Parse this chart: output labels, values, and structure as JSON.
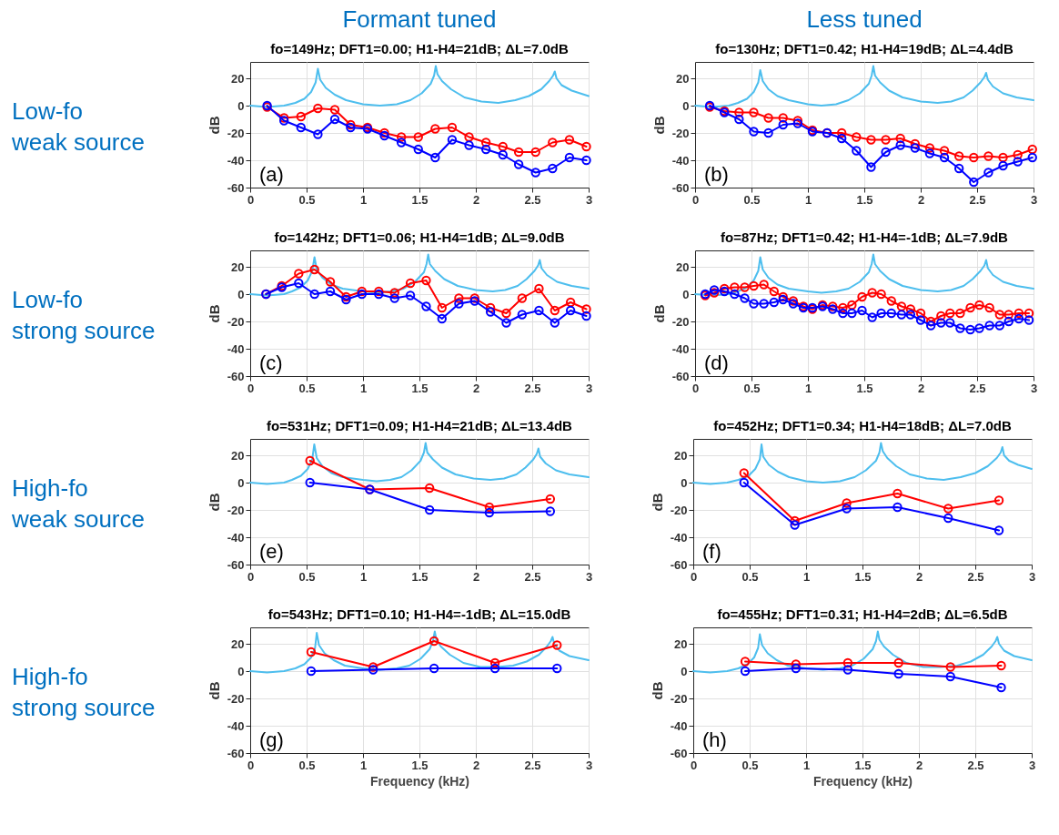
{
  "chart_data": [
    {
      "type": "line",
      "title": "fo=149Hz; DFT1=0.00; H1-H4=21dB; ΔL=7.0dB",
      "ylabel": "dB",
      "annotations": [
        "(a)",
        "Formant tuned",
        "Low-fo\nweak source"
      ],
      "xlim": [
        0,
        3
      ],
      "xticks": [
        0,
        0.5,
        1,
        1.5,
        2,
        2.5,
        3
      ],
      "ylim": [
        -60,
        32
      ],
      "yticks": [
        -60,
        -40,
        -20,
        0,
        20
      ],
      "grid": true,
      "marker": "circle",
      "x": [
        0.15,
        0.3,
        0.45,
        0.6,
        0.75,
        0.89,
        1.04,
        1.19,
        1.34,
        1.49,
        1.64,
        1.79,
        1.94,
        2.09,
        2.24,
        2.38,
        2.53,
        2.68,
        2.83,
        2.98
      ],
      "series": [
        {
          "color": "#4dbeee",
          "marker": "none",
          "x": [
            0,
            0.15,
            0.3,
            0.4,
            0.48,
            0.54,
            0.58,
            0.6,
            0.62,
            0.67,
            0.75,
            0.85,
            1.0,
            1.15,
            1.3,
            1.42,
            1.52,
            1.6,
            1.63,
            1.645,
            1.66,
            1.7,
            1.78,
            1.9,
            2.05,
            2.2,
            2.35,
            2.47,
            2.58,
            2.65,
            2.685,
            2.7,
            2.715,
            2.76,
            2.85,
            3
          ],
          "values": [
            0,
            -1,
            0,
            2,
            5,
            10,
            17,
            27,
            19,
            13,
            8,
            4,
            1,
            0,
            1,
            4,
            9,
            16,
            22,
            29,
            23,
            18,
            12,
            6,
            3,
            2,
            4,
            7,
            12,
            18,
            22,
            25,
            20,
            15,
            11,
            7
          ]
        },
        {
          "color": "#ff0000",
          "values": [
            -1,
            -9,
            -8,
            -2,
            -3,
            -14,
            -16,
            -20,
            -23,
            -23,
            -17,
            -16,
            -23,
            -27,
            -30,
            -34,
            -34,
            -27,
            -25,
            -30
          ]
        },
        {
          "color": "#0000ff",
          "values": [
            0,
            -11,
            -16,
            -21,
            -10,
            -16,
            -17,
            -22,
            -27,
            -32,
            -38,
            -25,
            -29,
            -32,
            -36,
            -43,
            -49,
            -46,
            -38,
            -40
          ]
        }
      ]
    },
    {
      "type": "line",
      "title": "fo=130Hz; DFT1=0.42; H1-H4=19dB; ΔL=4.4dB",
      "ylabel": "dB",
      "annotations": [
        "(b)",
        "Less tuned"
      ],
      "xlim": [
        0,
        3
      ],
      "xticks": [
        0,
        0.5,
        1,
        1.5,
        2,
        2.5,
        3
      ],
      "ylim": [
        -60,
        32
      ],
      "yticks": [
        -60,
        -40,
        -20,
        0,
        20
      ],
      "grid": true,
      "marker": "circle",
      "x": [
        0.13,
        0.26,
        0.39,
        0.52,
        0.65,
        0.78,
        0.91,
        1.04,
        1.17,
        1.3,
        1.43,
        1.56,
        1.69,
        1.82,
        1.95,
        2.08,
        2.21,
        2.34,
        2.47,
        2.6,
        2.73,
        2.86,
        2.99
      ],
      "series": [
        {
          "color": "#4dbeee",
          "marker": "none",
          "x": [
            0,
            0.15,
            0.3,
            0.38,
            0.46,
            0.52,
            0.56,
            0.578,
            0.6,
            0.65,
            0.73,
            0.83,
            1.0,
            1.12,
            1.25,
            1.36,
            1.46,
            1.54,
            1.565,
            1.58,
            1.595,
            1.64,
            1.72,
            1.84,
            2.0,
            2.15,
            2.27,
            2.38,
            2.46,
            2.53,
            2.565,
            2.58,
            2.595,
            2.64,
            2.73,
            2.85,
            3
          ],
          "values": [
            0,
            -1,
            0,
            2,
            5,
            10,
            17,
            26,
            18,
            12,
            7,
            4,
            1,
            0,
            1,
            4,
            9,
            16,
            22,
            29,
            22,
            17,
            11,
            6,
            3,
            2,
            3,
            6,
            11,
            17,
            21,
            24,
            19,
            14,
            9,
            6,
            4
          ]
        },
        {
          "color": "#ff0000",
          "values": [
            -1,
            -4,
            -5,
            -5,
            -9,
            -9,
            -11,
            -18,
            -20,
            -20,
            -23,
            -25,
            -25,
            -24,
            -28,
            -31,
            -33,
            -37,
            -38,
            -37,
            -38,
            -36,
            -32
          ]
        },
        {
          "color": "#0000ff",
          "values": [
            0,
            -5,
            -10,
            -19,
            -20,
            -14,
            -13,
            -19,
            -20,
            -24,
            -33,
            -45,
            -34,
            -29,
            -31,
            -35,
            -38,
            -46,
            -56,
            -49,
            -44,
            -41,
            -38
          ]
        }
      ]
    },
    {
      "type": "line",
      "title": "fo=142Hz; DFT1=0.06; H1-H4=1dB; ΔL=9.0dB",
      "ylabel": "dB",
      "annotations": [
        "(c)",
        "Low-fo\nstrong source"
      ],
      "xlim": [
        0,
        3
      ],
      "xticks": [
        0,
        0.5,
        1,
        1.5,
        2,
        2.5,
        3
      ],
      "ylim": [
        -60,
        32
      ],
      "yticks": [
        -60,
        -40,
        -20,
        0,
        20
      ],
      "grid": true,
      "marker": "circle",
      "x": [
        0.14,
        0.28,
        0.43,
        0.57,
        0.71,
        0.85,
        0.99,
        1.14,
        1.28,
        1.42,
        1.56,
        1.7,
        1.85,
        1.99,
        2.13,
        2.27,
        2.41,
        2.56,
        2.7,
        2.84,
        2.98
      ],
      "series": [
        {
          "color": "#4dbeee",
          "marker": "none",
          "x": [
            0,
            0.15,
            0.3,
            0.37,
            0.45,
            0.51,
            0.55,
            0.57,
            0.59,
            0.64,
            0.72,
            0.82,
            1.0,
            1.12,
            1.25,
            1.36,
            1.46,
            1.54,
            1.563,
            1.578,
            1.593,
            1.64,
            1.72,
            1.84,
            2.0,
            2.15,
            2.26,
            2.37,
            2.45,
            2.52,
            2.552,
            2.567,
            2.582,
            2.63,
            2.72,
            2.85,
            3
          ],
          "values": [
            0,
            -1,
            0,
            2,
            5,
            10,
            17,
            27,
            18,
            12,
            7,
            4,
            2,
            1,
            2,
            4,
            9,
            16,
            22,
            29,
            22,
            17,
            11,
            6,
            3,
            2,
            3,
            6,
            11,
            17,
            21,
            25,
            19,
            14,
            9,
            6,
            4
          ]
        },
        {
          "color": "#ff0000",
          "values": [
            0,
            6,
            15,
            18,
            9,
            -2,
            2,
            2,
            1,
            8,
            10,
            -10,
            -3,
            -3,
            -10,
            -14,
            -3,
            4,
            -12,
            -6,
            -11
          ]
        },
        {
          "color": "#0000ff",
          "values": [
            0,
            5,
            8,
            0,
            2,
            -4,
            0,
            0,
            -3,
            -1,
            -9,
            -18,
            -7,
            -5,
            -13,
            -21,
            -15,
            -12,
            -21,
            -12,
            -16
          ]
        }
      ]
    },
    {
      "type": "line",
      "title": "fo=87Hz; DFT1=0.42; H1-H4=-1dB; ΔL=7.9dB",
      "ylabel": "dB",
      "annotations": [
        "(d)"
      ],
      "xlim": [
        0,
        3
      ],
      "xticks": [
        0,
        0.5,
        1,
        1.5,
        2,
        2.5,
        3
      ],
      "ylim": [
        -60,
        32
      ],
      "yticks": [
        -60,
        -40,
        -20,
        0,
        20
      ],
      "grid": true,
      "marker": "circle",
      "x": [
        0.09,
        0.17,
        0.26,
        0.35,
        0.44,
        0.52,
        0.61,
        0.7,
        0.78,
        0.87,
        0.96,
        1.04,
        1.13,
        1.22,
        1.31,
        1.39,
        1.48,
        1.57,
        1.65,
        1.74,
        1.83,
        1.91,
        2,
        2.09,
        2.18,
        2.26,
        2.35,
        2.44,
        2.52,
        2.61,
        2.7,
        2.78,
        2.87,
        2.96
      ],
      "series": [
        {
          "color": "#4dbeee",
          "marker": "none",
          "x": [
            0,
            0.15,
            0.3,
            0.38,
            0.46,
            0.52,
            0.56,
            0.578,
            0.6,
            0.65,
            0.73,
            0.83,
            1.0,
            1.12,
            1.25,
            1.36,
            1.46,
            1.54,
            1.565,
            1.58,
            1.595,
            1.64,
            1.72,
            1.84,
            2.0,
            2.15,
            2.27,
            2.38,
            2.46,
            2.53,
            2.565,
            2.58,
            2.595,
            2.64,
            2.73,
            2.85,
            3
          ],
          "values": [
            0,
            -1,
            0,
            2,
            5,
            10,
            17,
            27,
            18,
            12,
            7,
            4,
            2,
            1,
            2,
            4,
            9,
            16,
            22,
            29,
            22,
            17,
            11,
            6,
            3,
            2,
            3,
            6,
            11,
            17,
            21,
            25,
            19,
            14,
            9,
            6,
            4
          ]
        },
        {
          "color": "#ff0000",
          "values": [
            -1,
            1,
            4,
            5,
            5,
            6,
            7,
            2,
            -2,
            -5,
            -9,
            -11,
            -8,
            -9,
            -10,
            -8,
            -2,
            1,
            0,
            -5,
            -9,
            -11,
            -14,
            -20,
            -16,
            -14,
            -14,
            -10,
            -8,
            -10,
            -15,
            -15,
            -14,
            -14
          ]
        },
        {
          "color": "#0000ff",
          "values": [
            0,
            3,
            2,
            0,
            -3,
            -7,
            -7,
            -6,
            -4,
            -7,
            -10,
            -10,
            -9,
            -11,
            -14,
            -14,
            -12,
            -17,
            -14,
            -14,
            -15,
            -15,
            -19,
            -23,
            -21,
            -21,
            -25,
            -26,
            -25,
            -23,
            -23,
            -20,
            -18,
            -19
          ]
        }
      ]
    },
    {
      "type": "line",
      "title": "fo=531Hz; DFT1=0.09; H1-H4=21dB; ΔL=13.4dB",
      "ylabel": "dB",
      "annotations": [
        "(e)",
        "High-fo\nweak source"
      ],
      "xlim": [
        0,
        3
      ],
      "xticks": [
        0,
        0.5,
        1,
        1.5,
        2,
        2.5,
        3
      ],
      "ylim": [
        -60,
        32
      ],
      "yticks": [
        -60,
        -40,
        -20,
        0,
        20
      ],
      "grid": true,
      "marker": "circle",
      "x": [
        0.53,
        1.06,
        1.59,
        2.12,
        2.66
      ],
      "series": [
        {
          "color": "#4dbeee",
          "marker": "none",
          "x": [
            0,
            0.15,
            0.3,
            0.37,
            0.45,
            0.51,
            0.55,
            0.568,
            0.59,
            0.64,
            0.72,
            0.82,
            1.0,
            1.12,
            1.24,
            1.34,
            1.43,
            1.51,
            1.54,
            1.555,
            1.57,
            1.62,
            1.7,
            1.82,
            1.98,
            2.13,
            2.25,
            2.36,
            2.44,
            2.51,
            2.54,
            2.555,
            2.57,
            2.62,
            2.71,
            2.83,
            3
          ],
          "values": [
            0,
            -1,
            0,
            2,
            5,
            10,
            17,
            28,
            18,
            12,
            7,
            4,
            2,
            1,
            2,
            4,
            9,
            16,
            22,
            29,
            22,
            17,
            11,
            6,
            3,
            2,
            3,
            6,
            11,
            17,
            21,
            25,
            19,
            14,
            9,
            6,
            4
          ]
        },
        {
          "color": "#ff0000",
          "values": [
            16,
            -5,
            -4,
            -18,
            -12
          ]
        },
        {
          "color": "#0000ff",
          "values": [
            0,
            -5,
            -20,
            -22,
            -21
          ]
        }
      ]
    },
    {
      "type": "line",
      "title": "fo=452Hz; DFT1=0.34; H1-H4=18dB; ΔL=7.0dB",
      "ylabel": "dB",
      "annotations": [
        "(f)"
      ],
      "xlim": [
        0,
        3
      ],
      "xticks": [
        0,
        0.5,
        1,
        1.5,
        2,
        2.5,
        3
      ],
      "ylim": [
        -60,
        32
      ],
      "yticks": [
        -60,
        -40,
        -20,
        0,
        20
      ],
      "grid": true,
      "marker": "circle",
      "x": [
        0.45,
        0.9,
        1.36,
        1.81,
        2.26,
        2.71
      ],
      "series": [
        {
          "color": "#4dbeee",
          "marker": "none",
          "x": [
            0,
            0.15,
            0.3,
            0.4,
            0.49,
            0.55,
            0.59,
            0.605,
            0.62,
            0.67,
            0.75,
            0.85,
            1.0,
            1.15,
            1.3,
            1.43,
            1.53,
            1.62,
            1.65,
            1.664,
            1.68,
            1.72,
            1.8,
            1.92,
            2.07,
            2.22,
            2.37,
            2.5,
            2.61,
            2.69,
            2.725,
            2.74,
            2.755,
            2.8,
            2.88,
            3
          ],
          "values": [
            0,
            -1,
            0,
            2,
            5,
            10,
            17,
            28,
            19,
            13,
            8,
            4,
            1,
            0,
            1,
            4,
            9,
            16,
            22,
            29,
            23,
            18,
            12,
            6,
            3,
            2,
            4,
            7,
            12,
            18,
            22,
            26,
            20,
            16,
            13,
            10
          ]
        },
        {
          "color": "#ff0000",
          "values": [
            7,
            -28,
            -15,
            -8,
            -19,
            -13
          ]
        },
        {
          "color": "#0000ff",
          "values": [
            0,
            -31,
            -19,
            -18,
            -26,
            -35
          ]
        }
      ]
    },
    {
      "type": "line",
      "title": "fo=543Hz; DFT1=0.10; H1-H4=-1dB; ΔL=15.0dB",
      "xlabel": "Frequency (kHz)",
      "ylabel": "dB",
      "annotations": [
        "(g)",
        "High-fo\nstrong source"
      ],
      "xlim": [
        0,
        3
      ],
      "xticks": [
        0,
        0.5,
        1,
        1.5,
        2,
        2.5,
        3
      ],
      "ylim": [
        -60,
        32
      ],
      "yticks": [
        -60,
        -40,
        -20,
        0,
        20
      ],
      "grid": true,
      "marker": "circle",
      "x": [
        0.54,
        1.09,
        1.63,
        2.17,
        2.72
      ],
      "series": [
        {
          "color": "#4dbeee",
          "marker": "none",
          "x": [
            0,
            0.15,
            0.3,
            0.4,
            0.48,
            0.54,
            0.575,
            0.59,
            0.61,
            0.66,
            0.74,
            0.84,
            1.0,
            1.15,
            1.3,
            1.41,
            1.51,
            1.59,
            1.62,
            1.636,
            1.65,
            1.69,
            1.77,
            1.89,
            2.04,
            2.19,
            2.33,
            2.45,
            2.56,
            2.63,
            2.665,
            2.68,
            2.695,
            2.74,
            2.83,
            3
          ],
          "values": [
            0,
            -1,
            0,
            2,
            5,
            10,
            17,
            28,
            19,
            13,
            8,
            4,
            2,
            1,
            2,
            4,
            9,
            16,
            22,
            29,
            23,
            18,
            12,
            6,
            3,
            3,
            4,
            7,
            12,
            18,
            22,
            25,
            20,
            15,
            11,
            8
          ]
        },
        {
          "color": "#ff0000",
          "values": [
            14,
            3,
            22,
            6,
            19
          ]
        },
        {
          "color": "#0000ff",
          "values": [
            0,
            1,
            2,
            2,
            2
          ]
        }
      ]
    },
    {
      "type": "line",
      "title": "fo=455Hz; DFT1=0.31; H1-H4=2dB; ΔL=6.5dB",
      "xlabel": "Frequency (kHz)",
      "ylabel": "dB",
      "annotations": [
        "(h)"
      ],
      "xlim": [
        0,
        3
      ],
      "xticks": [
        0,
        0.5,
        1,
        1.5,
        2,
        2.5,
        3
      ],
      "ylim": [
        -60,
        32
      ],
      "yticks": [
        -60,
        -40,
        -20,
        0,
        20
      ],
      "grid": true,
      "marker": "circle",
      "x": [
        0.46,
        0.91,
        1.37,
        1.82,
        2.28,
        2.73
      ],
      "series": [
        {
          "color": "#4dbeee",
          "marker": "none",
          "x": [
            0,
            0.15,
            0.3,
            0.4,
            0.48,
            0.54,
            0.575,
            0.59,
            0.61,
            0.66,
            0.74,
            0.84,
            1.0,
            1.15,
            1.3,
            1.41,
            1.51,
            1.59,
            1.62,
            1.636,
            1.65,
            1.69,
            1.77,
            1.89,
            2.04,
            2.19,
            2.34,
            2.46,
            2.57,
            2.645,
            2.68,
            2.695,
            2.71,
            2.755,
            2.845,
            3
          ],
          "values": [
            0,
            -1,
            0,
            2,
            5,
            10,
            17,
            27,
            19,
            13,
            8,
            4,
            2,
            1,
            2,
            4,
            9,
            16,
            22,
            29,
            23,
            18,
            12,
            6,
            3,
            3,
            4,
            7,
            12,
            18,
            22,
            25,
            20,
            15,
            11,
            8
          ]
        },
        {
          "color": "#ff0000",
          "values": [
            7,
            5,
            6,
            6,
            3,
            4
          ]
        },
        {
          "color": "#0000ff",
          "values": [
            0,
            2,
            1,
            -2,
            -4,
            -12
          ]
        }
      ]
    }
  ]
}
